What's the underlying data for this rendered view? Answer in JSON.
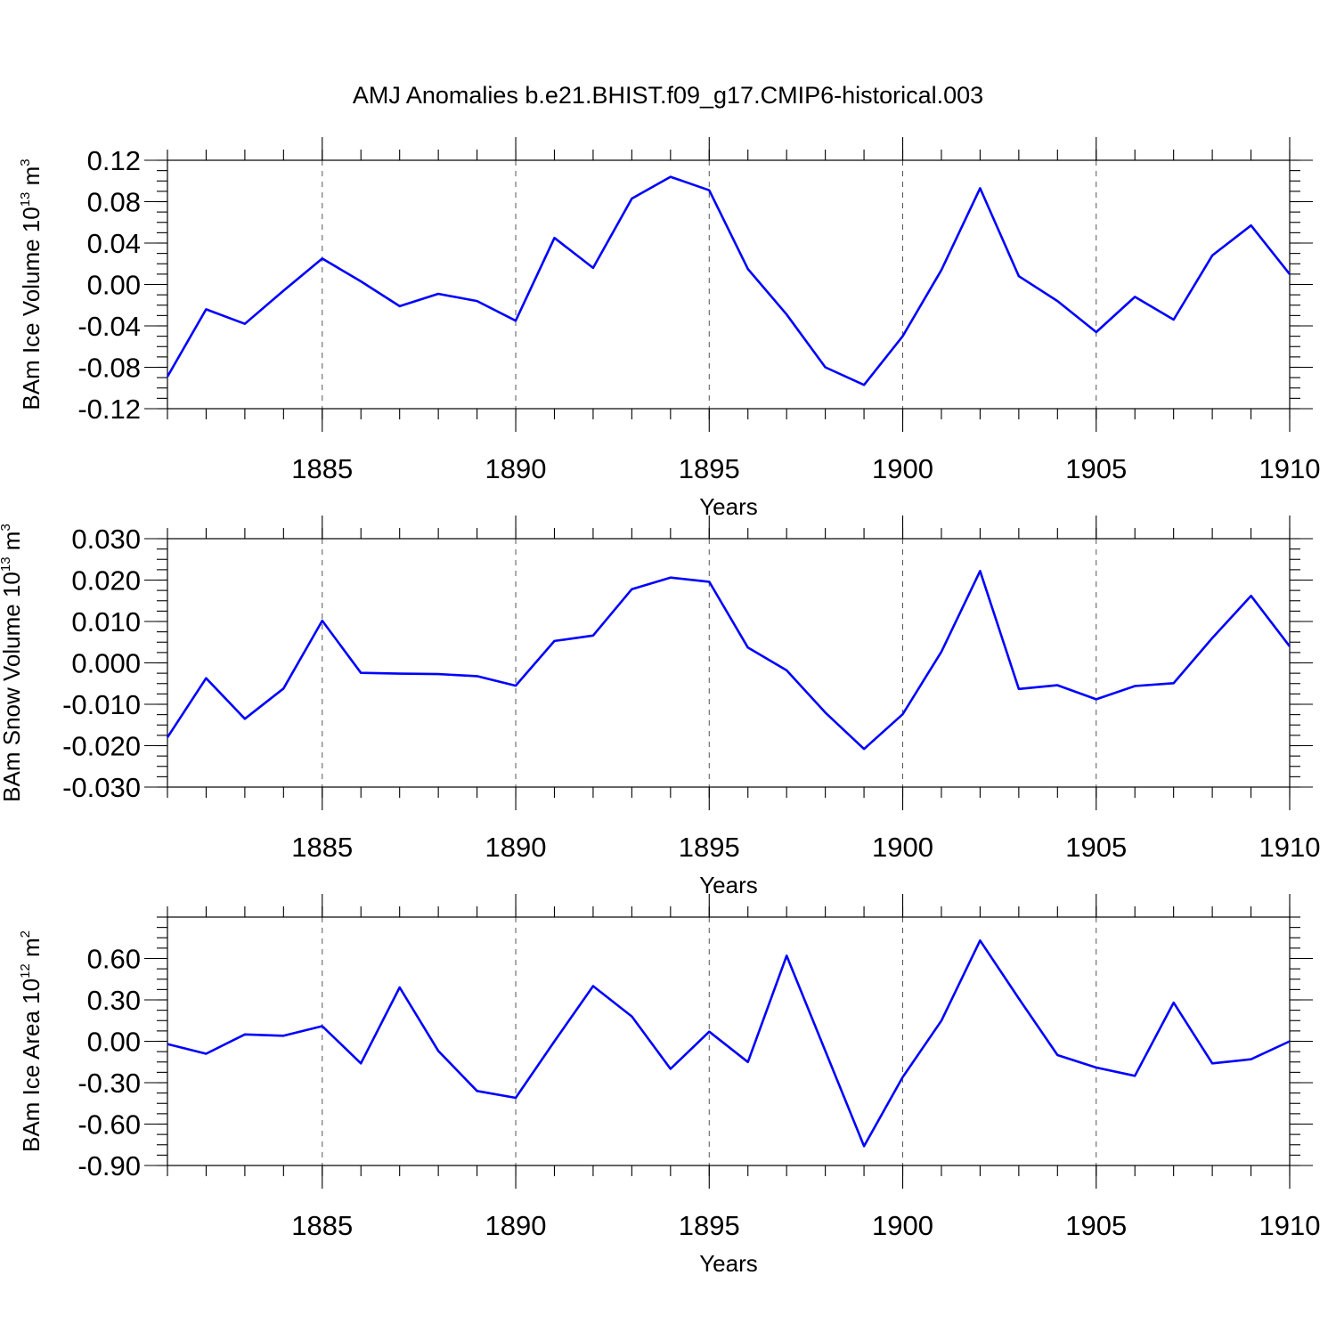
{
  "figure": {
    "title": "AMJ Anomalies b.e21.BHIST.f09_g17.CMIP6-historical.003"
  },
  "chart_data": [
    {
      "type": "line",
      "title": "",
      "xlabel": "Years",
      "ylabel_parts": [
        "BAm Ice Volume 10",
        "13",
        " m",
        "3"
      ],
      "xlim": [
        1881,
        1910
      ],
      "ylim": [
        -0.12,
        0.12
      ],
      "x_ticks": [
        1885,
        1890,
        1895,
        1900,
        1905,
        1910
      ],
      "y_ticks": [
        -0.12,
        -0.08,
        -0.04,
        0.0,
        0.04,
        0.08,
        0.12
      ],
      "y_tick_labels": [
        "-0.12",
        "-0.08",
        "-0.04",
        "0.00",
        "0.04",
        "0.08",
        "0.12"
      ],
      "x_minor_step": 1,
      "y_minor_step": 0.01,
      "vertical_grid_dashed": true,
      "line_color": "#0000ff",
      "series": [
        {
          "x": [
            1881,
            1882,
            1883,
            1884,
            1885,
            1886,
            1887,
            1888,
            1889,
            1890,
            1891,
            1892,
            1893,
            1894,
            1895,
            1896,
            1897,
            1898,
            1899,
            1900,
            1901,
            1902,
            1903,
            1904,
            1905,
            1906,
            1907,
            1908,
            1909,
            1910
          ],
          "values": [
            -0.089,
            -0.024,
            -0.038,
            -0.006,
            0.025,
            0.003,
            -0.021,
            -0.009,
            -0.016,
            -0.035,
            0.045,
            0.016,
            0.083,
            0.104,
            0.091,
            0.015,
            -0.029,
            -0.08,
            -0.097,
            -0.05,
            0.014,
            0.093,
            0.008,
            -0.016,
            -0.046,
            -0.012,
            -0.034,
            0.028,
            0.057,
            0.01
          ]
        }
      ]
    },
    {
      "type": "line",
      "title": "",
      "xlabel": "Years",
      "ylabel_parts": [
        "BAm Snow Volume 10",
        "13",
        " m",
        "3"
      ],
      "xlim": [
        1881,
        1910
      ],
      "ylim": [
        -0.03,
        0.03
      ],
      "x_ticks": [
        1885,
        1890,
        1895,
        1900,
        1905,
        1910
      ],
      "y_ticks": [
        -0.03,
        -0.02,
        -0.01,
        0.0,
        0.01,
        0.02,
        0.03
      ],
      "y_tick_labels": [
        "-0.030",
        "-0.020",
        "-0.010",
        "0.000",
        "0.010",
        "0.020",
        "0.030"
      ],
      "x_minor_step": 1,
      "y_minor_step": 0.0025,
      "vertical_grid_dashed": true,
      "line_color": "#0000ff",
      "series": [
        {
          "x": [
            1881,
            1882,
            1883,
            1884,
            1885,
            1886,
            1887,
            1888,
            1889,
            1890,
            1891,
            1892,
            1893,
            1894,
            1895,
            1896,
            1897,
            1898,
            1899,
            1900,
            1901,
            1902,
            1903,
            1904,
            1905,
            1906,
            1907,
            1908,
            1909,
            1910
          ],
          "values": [
            -0.018,
            -0.0037,
            -0.0135,
            -0.0062,
            0.0102,
            -0.0024,
            -0.0026,
            -0.0027,
            -0.0032,
            -0.0055,
            0.0053,
            0.0066,
            0.0178,
            0.0206,
            0.0196,
            0.0037,
            -0.0018,
            -0.012,
            -0.0208,
            -0.0124,
            0.0027,
            0.0222,
            -0.0063,
            -0.0054,
            -0.0088,
            -0.0056,
            -0.0049,
            0.006,
            0.0162,
            0.004
          ]
        }
      ]
    },
    {
      "type": "line",
      "title": "",
      "xlabel": "Years",
      "ylabel_parts": [
        "BAm Ice Area 10",
        "12",
        " m",
        "2"
      ],
      "xlim": [
        1881,
        1910
      ],
      "ylim": [
        -0.9,
        0.9
      ],
      "x_ticks": [
        1885,
        1890,
        1895,
        1900,
        1905,
        1910
      ],
      "y_ticks": [
        -0.9,
        -0.6,
        -0.3,
        0.0,
        0.3,
        0.6
      ],
      "y_tick_labels": [
        "-0.90",
        "-0.60",
        "-0.30",
        "0.00",
        "0.30",
        "0.60"
      ],
      "x_minor_step": 1,
      "y_minor_step": 0.075,
      "vertical_grid_dashed": true,
      "line_color": "#0000ff",
      "series": [
        {
          "x": [
            1881,
            1882,
            1883,
            1884,
            1885,
            1886,
            1887,
            1888,
            1889,
            1890,
            1891,
            1892,
            1893,
            1894,
            1895,
            1896,
            1897,
            1898,
            1899,
            1900,
            1901,
            1902,
            1903,
            1904,
            1905,
            1906,
            1907,
            1908,
            1909,
            1910
          ],
          "values": [
            -0.02,
            -0.09,
            0.05,
            0.04,
            0.11,
            -0.16,
            0.39,
            -0.07,
            -0.36,
            -0.41,
            0.0,
            0.4,
            0.18,
            -0.2,
            0.07,
            -0.15,
            0.62,
            -0.07,
            -0.76,
            -0.26,
            0.15,
            0.73,
            0.31,
            -0.1,
            -0.19,
            -0.25,
            0.28,
            -0.16,
            -0.13,
            0.0
          ]
        }
      ]
    }
  ]
}
